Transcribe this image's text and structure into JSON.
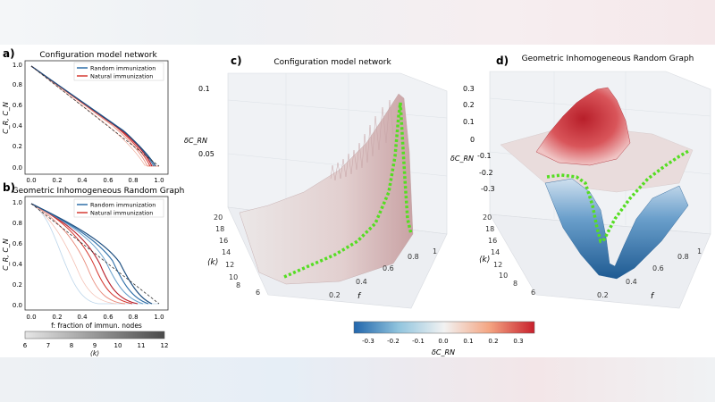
{
  "figure": {
    "panel_a": {
      "letter": "a)",
      "title": "Configuration model network",
      "ylabel": "C_R, C_N",
      "legend": [
        "Random immunization",
        "Natural immunization"
      ],
      "xticks": [
        "0.0",
        "0.2",
        "0.4",
        "0.6",
        "0.8",
        "1.0"
      ],
      "yticks": [
        "0.0",
        "0.2",
        "0.4",
        "0.6",
        "0.8",
        "1.0"
      ]
    },
    "panel_b": {
      "letter": "b)",
      "title": "Geometric Inhomogeneous Random Graph",
      "ylabel": "C_R, C_N",
      "xlabel": "f: fraction of immun. nodes",
      "legend": [
        "Random immunization",
        "Natural immunization"
      ],
      "xticks": [
        "0.0",
        "0.2",
        "0.4",
        "0.6",
        "0.8",
        "1.0"
      ],
      "yticks": [
        "0.0",
        "0.2",
        "0.4",
        "0.6",
        "0.8",
        "1.0"
      ]
    },
    "k_colorbar": {
      "label": "⟨k⟩",
      "ticks": [
        "6",
        "7",
        "8",
        "9",
        "10",
        "11",
        "12"
      ]
    },
    "panel_c": {
      "letter": "c)",
      "title": "Configuration model network",
      "zlabel": "δC_RN",
      "zticks": [
        "0.1",
        "0.05"
      ],
      "k_ticks": [
        "20",
        "18",
        "16",
        "14",
        "12",
        "10",
        "8",
        "6"
      ],
      "k_label": "⟨k⟩",
      "f_ticks": [
        "0.2",
        "0.4",
        "0.6",
        "0.8",
        "1"
      ],
      "f_label": "f"
    },
    "panel_d": {
      "letter": "d)",
      "title": "Geometric Inhomogeneous Random Graph",
      "zlabel": "δC_RN",
      "zticks": [
        "0.3",
        "0.2",
        "0.1",
        "0",
        "-0.1",
        "-0.2",
        "-0.3"
      ],
      "k_ticks": [
        "20",
        "18",
        "16",
        "14",
        "12",
        "10",
        "8",
        "6"
      ],
      "k_label": "⟨k⟩",
      "f_ticks": [
        "0.2",
        "0.4",
        "0.6",
        "0.8",
        "1"
      ],
      "f_label": "f"
    },
    "diverging_colorbar": {
      "label": "δC_RN",
      "ticks": [
        "-0.3",
        "-0.2",
        "-0.1",
        "0.0",
        "0.1",
        "0.2",
        "0.3"
      ]
    },
    "colors": {
      "random": "#2f6fa8",
      "natural": "#d63a32",
      "ridge": "#55dd22"
    }
  }
}
